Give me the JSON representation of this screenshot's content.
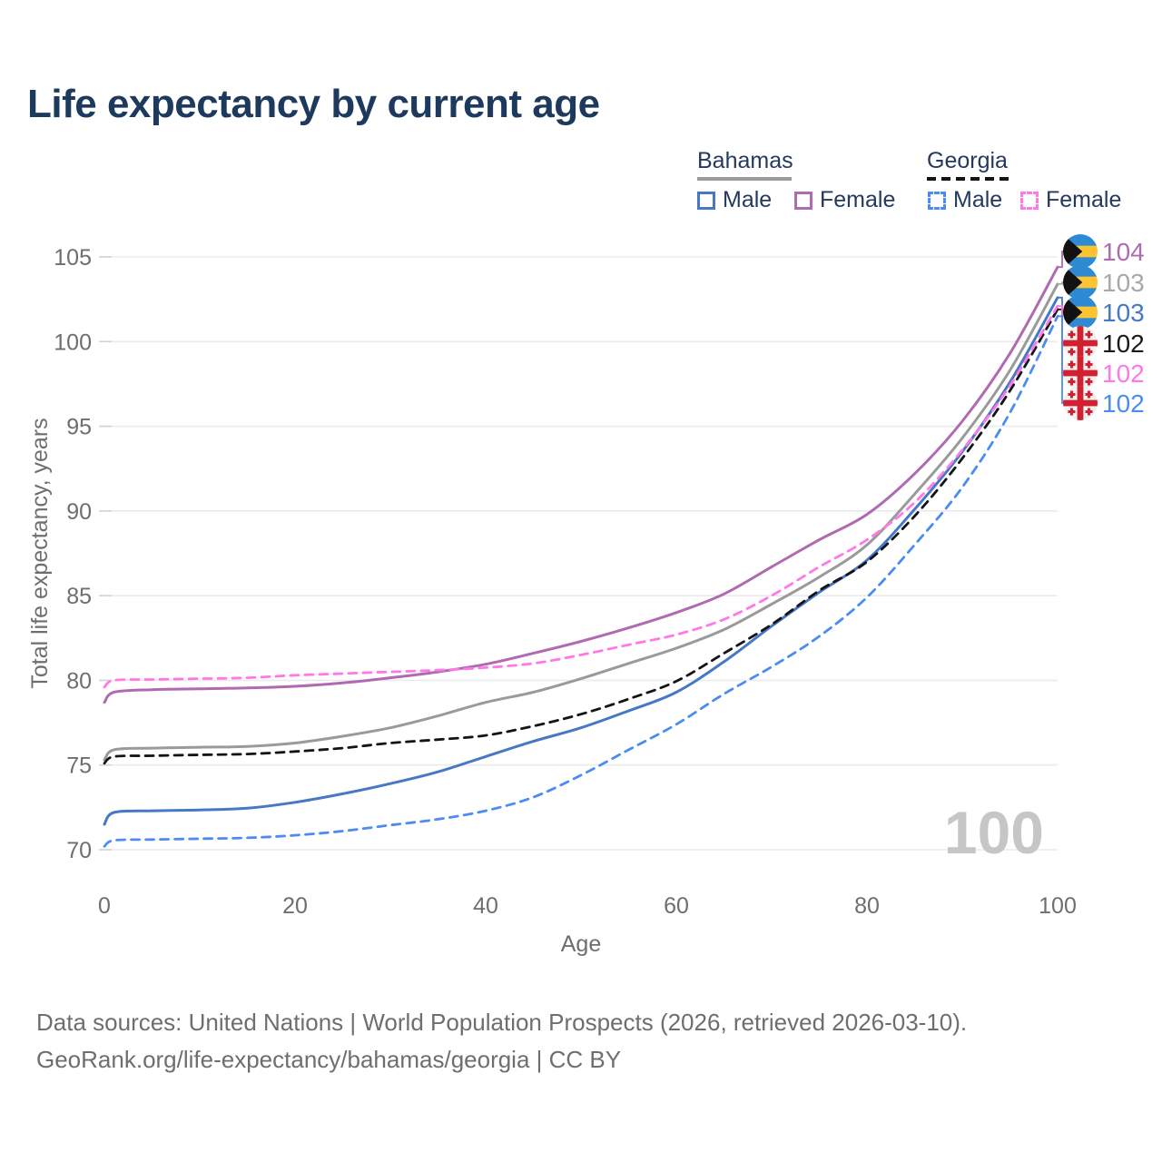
{
  "page": {
    "title": "Life expectancy by current age",
    "watermark": "100"
  },
  "legend": {
    "groups": [
      {
        "label": "Bahamas",
        "line_style": "solid",
        "line_color": "#9a9a9a"
      },
      {
        "label": "Georgia",
        "line_style": "dashed",
        "line_color": "#141414"
      }
    ],
    "items": [
      {
        "label": "Male",
        "color": "#4678c6",
        "dash": false
      },
      {
        "label": "Female",
        "color": "#b06ab1",
        "dash": false
      },
      {
        "label": "Male",
        "color": "#4a8cf2",
        "dash": true
      },
      {
        "label": "Female",
        "color": "#ff78e6",
        "dash": true
      }
    ]
  },
  "chart_data": {
    "type": "line",
    "title": "Life expectancy by current age",
    "xlabel": "Age",
    "ylabel": "Total life expectancy, years",
    "xlim": [
      0,
      100
    ],
    "ylim": [
      70,
      105
    ],
    "x_ticks": [
      0,
      20,
      40,
      60,
      80,
      100
    ],
    "y_ticks": [
      70,
      75,
      80,
      85,
      90,
      95,
      100,
      105
    ],
    "grid": "horizontal",
    "legend_position": "top-right",
    "series": [
      {
        "name": "Bahamas Female",
        "country": "Bahamas",
        "sex": "female",
        "color": "#b06ab1",
        "dash": false,
        "points": [
          [
            0,
            78.7
          ],
          [
            1,
            79.3
          ],
          [
            5,
            79.45
          ],
          [
            10,
            79.5
          ],
          [
            15,
            79.55
          ],
          [
            20,
            79.65
          ],
          [
            25,
            79.85
          ],
          [
            30,
            80.15
          ],
          [
            35,
            80.5
          ],
          [
            40,
            80.95
          ],
          [
            45,
            81.6
          ],
          [
            50,
            82.3
          ],
          [
            55,
            83.1
          ],
          [
            60,
            84.0
          ],
          [
            65,
            85.1
          ],
          [
            70,
            86.7
          ],
          [
            75,
            88.3
          ],
          [
            80,
            89.8
          ],
          [
            85,
            92.2
          ],
          [
            90,
            95.3
          ],
          [
            95,
            99.3
          ],
          [
            100,
            104.4
          ]
        ]
      },
      {
        "name": "Bahamas",
        "country": "Bahamas",
        "sex": "all",
        "color": "#9a9a9a",
        "dash": false,
        "points": [
          [
            0,
            75.3
          ],
          [
            1,
            75.9
          ],
          [
            5,
            76.0
          ],
          [
            10,
            76.05
          ],
          [
            15,
            76.1
          ],
          [
            20,
            76.3
          ],
          [
            25,
            76.7
          ],
          [
            30,
            77.2
          ],
          [
            35,
            77.9
          ],
          [
            40,
            78.7
          ],
          [
            45,
            79.3
          ],
          [
            50,
            80.1
          ],
          [
            55,
            81.0
          ],
          [
            60,
            81.9
          ],
          [
            65,
            83.0
          ],
          [
            70,
            84.5
          ],
          [
            75,
            86.1
          ],
          [
            80,
            88.0
          ],
          [
            85,
            91.0
          ],
          [
            90,
            94.3
          ],
          [
            95,
            98.3
          ],
          [
            100,
            103.4
          ]
        ]
      },
      {
        "name": "Bahamas Male",
        "country": "Bahamas",
        "sex": "male",
        "color": "#4678c6",
        "dash": false,
        "points": [
          [
            0,
            71.5
          ],
          [
            1,
            72.2
          ],
          [
            5,
            72.3
          ],
          [
            10,
            72.35
          ],
          [
            15,
            72.45
          ],
          [
            20,
            72.8
          ],
          [
            25,
            73.3
          ],
          [
            30,
            73.9
          ],
          [
            35,
            74.6
          ],
          [
            40,
            75.5
          ],
          [
            45,
            76.4
          ],
          [
            50,
            77.2
          ],
          [
            55,
            78.2
          ],
          [
            60,
            79.3
          ],
          [
            65,
            81.1
          ],
          [
            70,
            83.2
          ],
          [
            75,
            85.2
          ],
          [
            80,
            87.1
          ],
          [
            85,
            90.1
          ],
          [
            90,
            93.5
          ],
          [
            95,
            97.6
          ],
          [
            100,
            102.6
          ]
        ]
      },
      {
        "name": "Georgia",
        "country": "Georgia",
        "sex": "all",
        "color": "#141414",
        "dash": true,
        "points": [
          [
            0,
            75.1
          ],
          [
            1,
            75.5
          ],
          [
            5,
            75.55
          ],
          [
            10,
            75.6
          ],
          [
            15,
            75.65
          ],
          [
            20,
            75.8
          ],
          [
            25,
            76.0
          ],
          [
            30,
            76.3
          ],
          [
            35,
            76.5
          ],
          [
            40,
            76.75
          ],
          [
            45,
            77.3
          ],
          [
            50,
            78.0
          ],
          [
            55,
            78.9
          ],
          [
            60,
            79.95
          ],
          [
            65,
            81.6
          ],
          [
            70,
            83.3
          ],
          [
            75,
            85.3
          ],
          [
            80,
            87.0
          ],
          [
            85,
            89.7
          ],
          [
            90,
            93.1
          ],
          [
            95,
            97.1
          ],
          [
            100,
            101.9
          ]
        ]
      },
      {
        "name": "Georgia Female",
        "country": "Georgia",
        "sex": "female",
        "color": "#ff78e6",
        "dash": true,
        "points": [
          [
            0,
            79.6
          ],
          [
            1,
            80.0
          ],
          [
            5,
            80.05
          ],
          [
            10,
            80.1
          ],
          [
            15,
            80.15
          ],
          [
            20,
            80.3
          ],
          [
            25,
            80.4
          ],
          [
            30,
            80.5
          ],
          [
            35,
            80.6
          ],
          [
            40,
            80.75
          ],
          [
            45,
            81.0
          ],
          [
            50,
            81.5
          ],
          [
            55,
            82.1
          ],
          [
            60,
            82.7
          ],
          [
            65,
            83.6
          ],
          [
            70,
            85.0
          ],
          [
            75,
            86.7
          ],
          [
            80,
            88.3
          ],
          [
            85,
            90.5
          ],
          [
            90,
            93.6
          ],
          [
            95,
            97.4
          ],
          [
            100,
            102.1
          ]
        ]
      },
      {
        "name": "Georgia Male",
        "country": "Georgia",
        "sex": "male",
        "color": "#4a8cf2",
        "dash": true,
        "points": [
          [
            0,
            70.2
          ],
          [
            1,
            70.55
          ],
          [
            5,
            70.6
          ],
          [
            10,
            70.65
          ],
          [
            15,
            70.7
          ],
          [
            20,
            70.85
          ],
          [
            25,
            71.1
          ],
          [
            30,
            71.45
          ],
          [
            35,
            71.8
          ],
          [
            40,
            72.3
          ],
          [
            45,
            73.1
          ],
          [
            50,
            74.4
          ],
          [
            55,
            75.9
          ],
          [
            60,
            77.4
          ],
          [
            65,
            79.2
          ],
          [
            70,
            80.8
          ],
          [
            75,
            82.6
          ],
          [
            80,
            84.9
          ],
          [
            85,
            88.0
          ],
          [
            90,
            91.4
          ],
          [
            95,
            95.8
          ],
          [
            100,
            101.5
          ]
        ]
      }
    ],
    "end_labels": [
      {
        "text": "104",
        "color": "#b06ab1",
        "flag": "bahamas",
        "value": 104.4
      },
      {
        "text": "103",
        "color": "#a8a8a8",
        "flag": "bahamas",
        "value": 103.4
      },
      {
        "text": "103",
        "color": "#4678c6",
        "flag": "bahamas",
        "value": 102.6
      },
      {
        "text": "102",
        "color": "#1a1a1a",
        "flag": "georgia",
        "value": 101.9
      },
      {
        "text": "102",
        "color": "#ff78e6",
        "flag": "georgia",
        "value": 102.1
      },
      {
        "text": "102",
        "color": "#4a8cf2",
        "flag": "georgia",
        "value": 101.5
      }
    ]
  },
  "footer": {
    "line1": "Data sources: United Nations | World Population Prospects (2026, retrieved 2026-03-10).",
    "line2": "GeoRank.org/life-expectancy/bahamas/georgia | CC BY"
  }
}
